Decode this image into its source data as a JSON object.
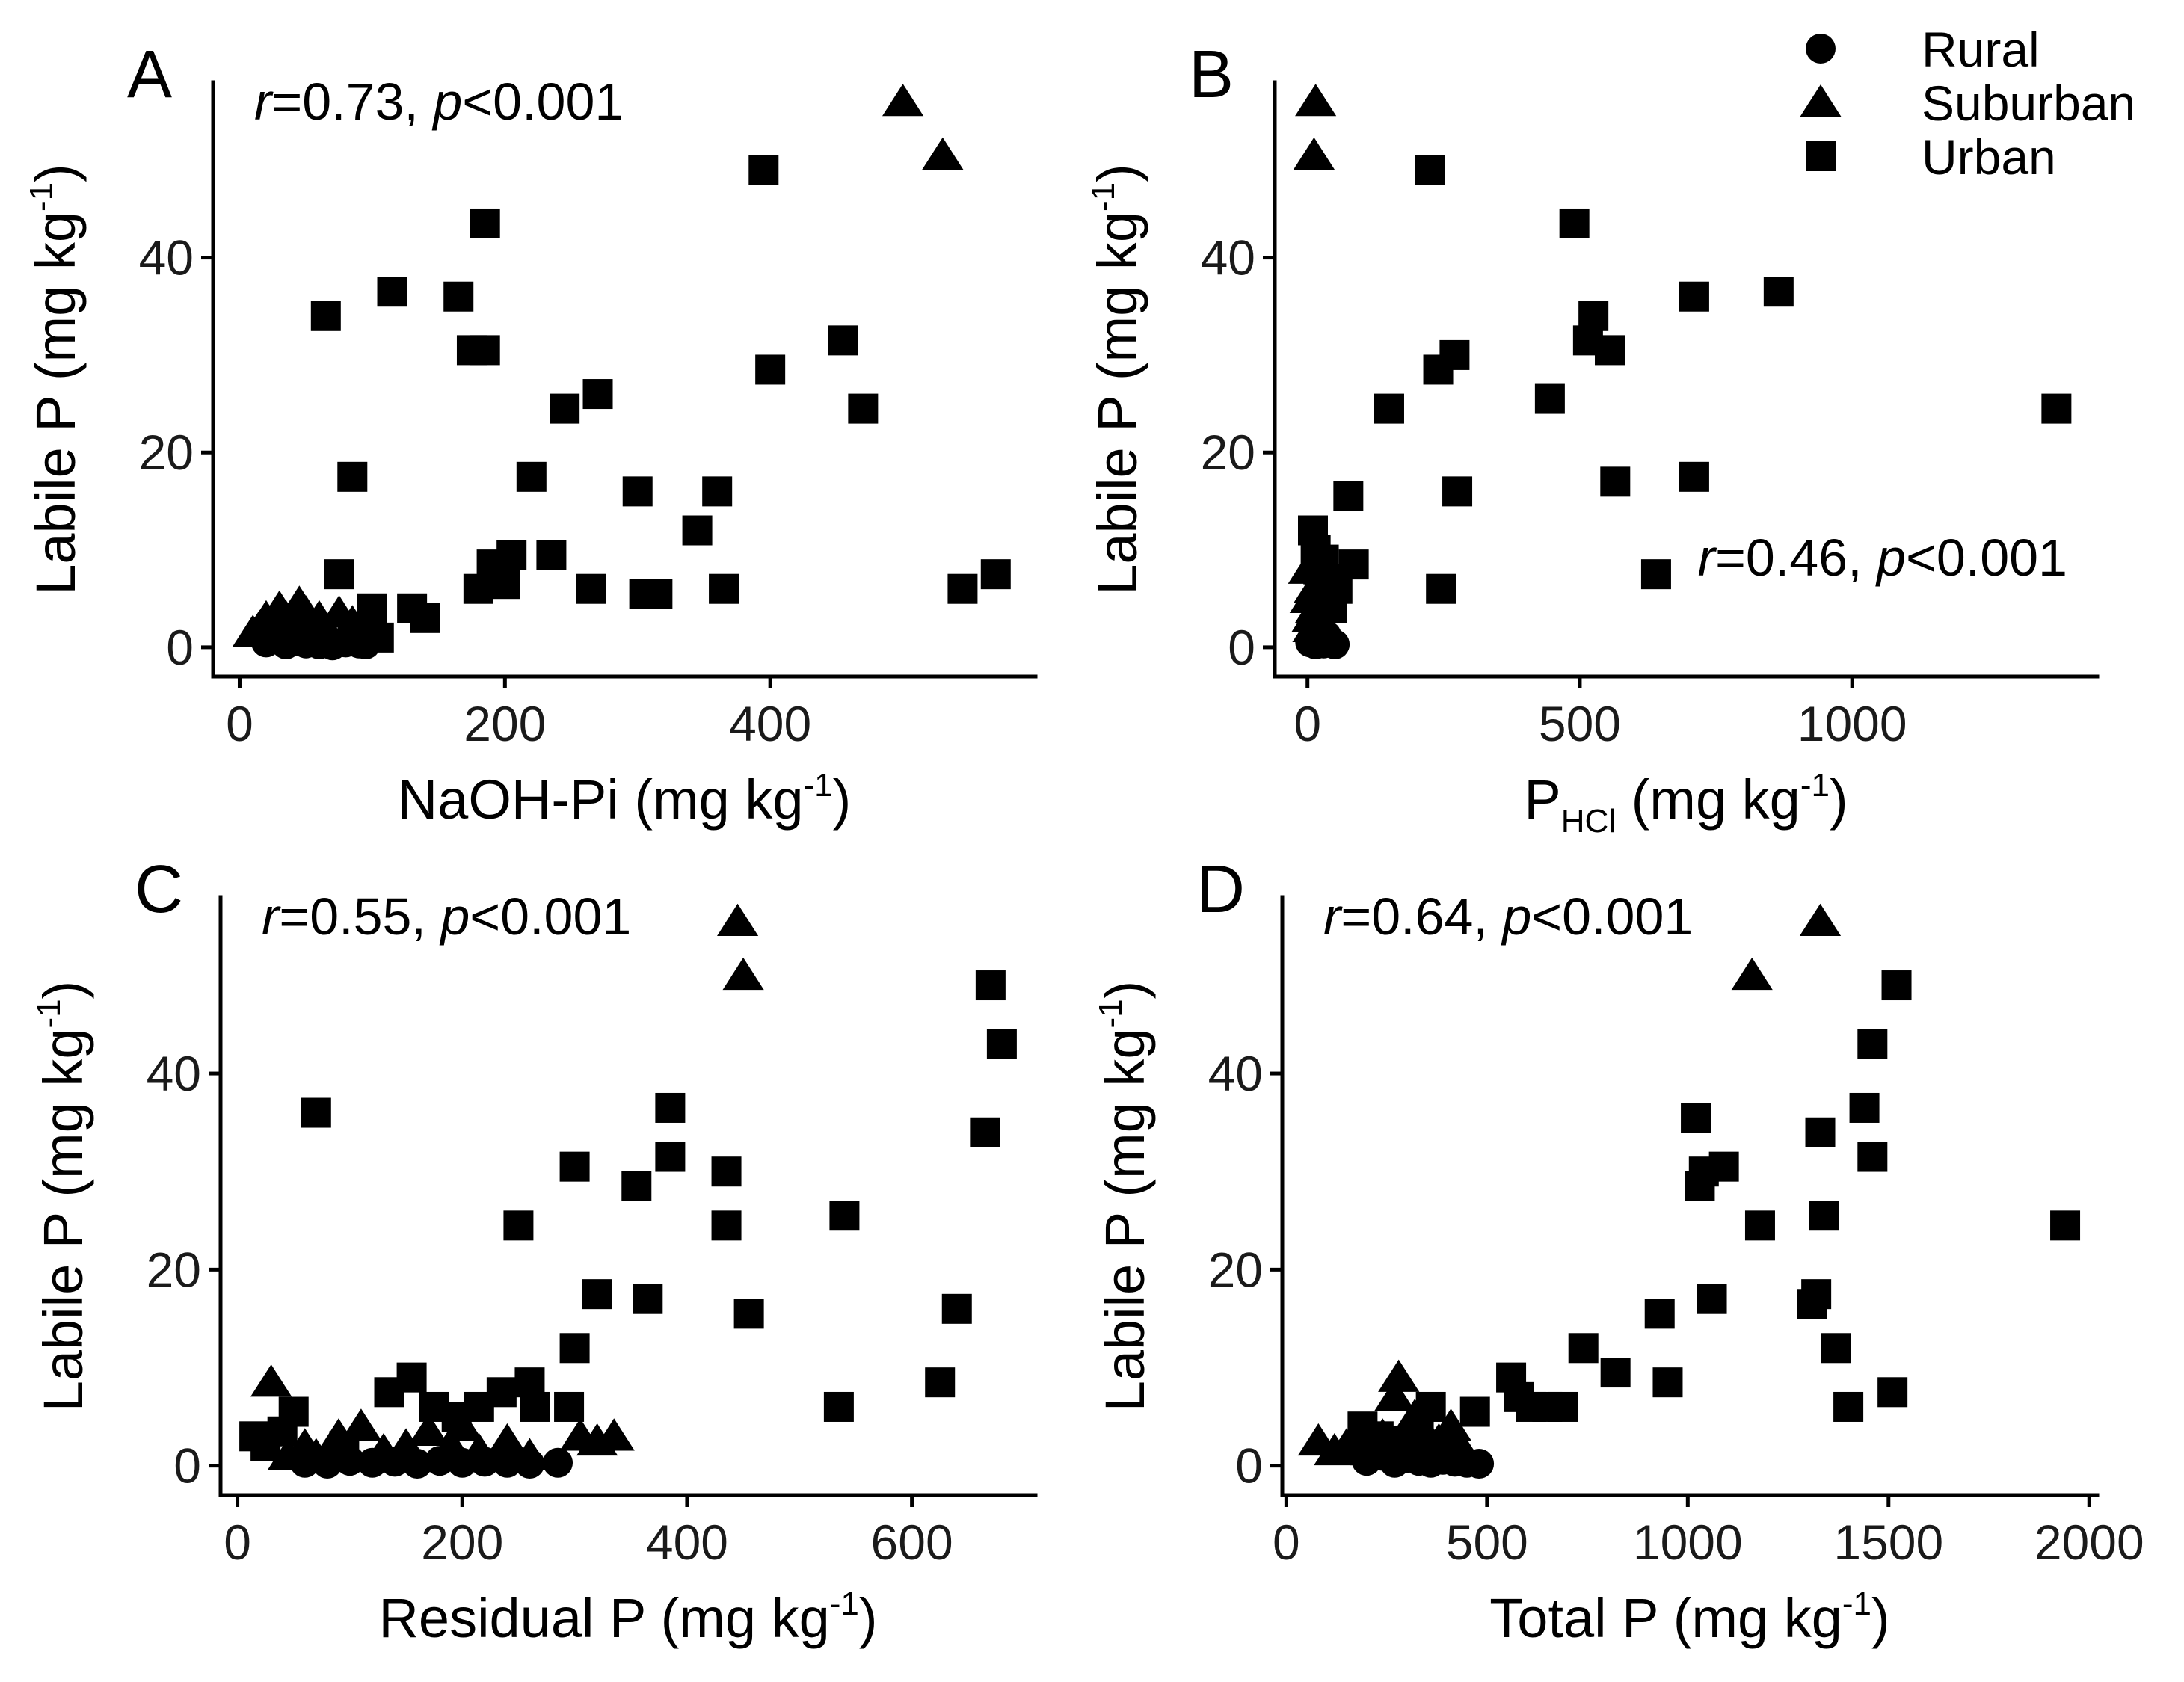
{
  "legend": {
    "position": "top-right",
    "entries": [
      {
        "label": "Rural",
        "shape": "circle"
      },
      {
        "label": "Suburban",
        "shape": "triangle"
      },
      {
        "label": "Urban",
        "shape": "square"
      }
    ]
  },
  "chart_data": [
    {
      "type": "scatter",
      "panel_label": "A",
      "annotation": {
        "r_label": "r",
        "r_value": "=0.73, ",
        "p_label": "p",
        "p_value": "<0.001",
        "position": "top-left"
      },
      "xlabel": {
        "main": "NaOH-Pi (mg kg",
        "sup": "-1",
        "end": ")"
      },
      "ylabel": {
        "main": "Labile P (mg kg",
        "sup": "-1",
        "end": ")"
      },
      "xlim": [
        -20,
        600
      ],
      "ylim": [
        -3,
        58
      ],
      "xticks": [
        0,
        200,
        400
      ],
      "yticks": [
        0,
        20,
        40
      ],
      "series": [
        {
          "name": "Rural",
          "marker": "circle",
          "points": [
            [
              20,
              0.5
            ],
            [
              28,
              0.8
            ],
            [
              35,
              0.3
            ],
            [
              40,
              1
            ],
            [
              45,
              0.6
            ],
            [
              50,
              0.4
            ],
            [
              55,
              0.9
            ],
            [
              60,
              0.3
            ],
            [
              65,
              0.6
            ],
            [
              70,
              0.2
            ],
            [
              80,
              0.5
            ],
            [
              90,
              0.4
            ],
            [
              95,
              0.3
            ]
          ]
        },
        {
          "name": "Suburban",
          "marker": "triangle",
          "points": [
            [
              10,
              1.5
            ],
            [
              15,
              2
            ],
            [
              20,
              3
            ],
            [
              25,
              2.5
            ],
            [
              30,
              4
            ],
            [
              35,
              3
            ],
            [
              40,
              2
            ],
            [
              45,
              4.5
            ],
            [
              50,
              3.5
            ],
            [
              55,
              2
            ],
            [
              60,
              3
            ],
            [
              75,
              3.5
            ],
            [
              85,
              2.5
            ],
            [
              95,
              2
            ],
            [
              500,
              56
            ],
            [
              530,
              50.5
            ]
          ]
        },
        {
          "name": "Urban",
          "marker": "square",
          "points": [
            [
              65,
              34
            ],
            [
              75,
              7.5
            ],
            [
              85,
              17.5
            ],
            [
              100,
              4
            ],
            [
              105,
              1
            ],
            [
              115,
              36.5
            ],
            [
              130,
              4
            ],
            [
              140,
              3
            ],
            [
              165,
              36
            ],
            [
              175,
              30.5
            ],
            [
              180,
              6
            ],
            [
              185,
              43.5
            ],
            [
              185,
              30.5
            ],
            [
              190,
              8.5
            ],
            [
              200,
              6.5
            ],
            [
              205,
              9.5
            ],
            [
              220,
              17.5
            ],
            [
              235,
              9.5
            ],
            [
              245,
              24.5
            ],
            [
              265,
              6
            ],
            [
              270,
              26
            ],
            [
              300,
              16
            ],
            [
              305,
              5.5
            ],
            [
              315,
              5.5
            ],
            [
              345,
              12
            ],
            [
              360,
              16
            ],
            [
              365,
              6
            ],
            [
              395,
              49
            ],
            [
              400,
              28.5
            ],
            [
              455,
              31.5
            ],
            [
              470,
              24.5
            ],
            [
              545,
              6
            ],
            [
              570,
              7.5
            ]
          ]
        }
      ]
    },
    {
      "type": "scatter",
      "panel_label": "B",
      "annotation": {
        "r_label": "r",
        "r_value": "=0.46, ",
        "p_label": "p",
        "p_value": "<0.001",
        "position": "bottom-right"
      },
      "xlabel": {
        "main": "P",
        "sub": "HCl",
        "end": " (mg kg",
        "sup": "-1",
        "end2": ")"
      },
      "ylabel": {
        "main": "Labile P (mg kg",
        "sup": "-1",
        "end": ")"
      },
      "xlim": [
        -60,
        1450
      ],
      "ylim": [
        -3,
        58
      ],
      "xticks": [
        0,
        500,
        1000
      ],
      "yticks": [
        0,
        20,
        40
      ],
      "series": [
        {
          "name": "Rural",
          "marker": "circle",
          "points": [
            [
              5,
              0.5
            ],
            [
              10,
              1
            ],
            [
              15,
              0.3
            ],
            [
              20,
              1.5
            ],
            [
              25,
              0.8
            ],
            [
              30,
              0.4
            ],
            [
              35,
              1.2
            ],
            [
              40,
              0.6
            ],
            [
              50,
              0.3
            ]
          ]
        },
        {
          "name": "Suburban",
          "marker": "triangle",
          "points": [
            [
              2,
              8
            ],
            [
              5,
              5
            ],
            [
              8,
              3
            ],
            [
              10,
              2
            ],
            [
              12,
              6
            ],
            [
              15,
              4
            ],
            [
              18,
              2
            ],
            [
              20,
              3
            ],
            [
              15,
              56
            ],
            [
              12,
              50.5
            ]
          ]
        },
        {
          "name": "Urban",
          "marker": "square",
          "points": [
            [
              10,
              12
            ],
            [
              15,
              10
            ],
            [
              20,
              8
            ],
            [
              25,
              5
            ],
            [
              30,
              9
            ],
            [
              35,
              7
            ],
            [
              40,
              6.5
            ],
            [
              45,
              4
            ],
            [
              55,
              6
            ],
            [
              75,
              15.5
            ],
            [
              85,
              8.5
            ],
            [
              150,
              24.5
            ],
            [
              225,
              49
            ],
            [
              240,
              28.5
            ],
            [
              245,
              6
            ],
            [
              270,
              30
            ],
            [
              275,
              16
            ],
            [
              445,
              25.5
            ],
            [
              490,
              43.5
            ],
            [
              515,
              31.5
            ],
            [
              525,
              34
            ],
            [
              555,
              30.5
            ],
            [
              565,
              17
            ],
            [
              640,
              7.5
            ],
            [
              710,
              36
            ],
            [
              710,
              17.5
            ],
            [
              865,
              36.5
            ],
            [
              1375,
              24.5
            ]
          ]
        }
      ]
    },
    {
      "type": "scatter",
      "panel_label": "C",
      "annotation": {
        "r_label": "r",
        "r_value": "=0.55, ",
        "p_label": "p",
        "p_value": "<0.001",
        "position": "top-left"
      },
      "xlabel": {
        "main": "Residual P (mg kg",
        "sup": "-1",
        "end": ")"
      },
      "ylabel": {
        "main": "Labile P (mg kg",
        "sup": "-1",
        "end": ")"
      },
      "xlim": [
        -15,
        710
      ],
      "ylim": [
        -3,
        58
      ],
      "xticks": [
        0,
        200,
        400,
        600
      ],
      "yticks": [
        0,
        20,
        40
      ],
      "series": [
        {
          "name": "Rural",
          "marker": "circle",
          "points": [
            [
              60,
              0.3
            ],
            [
              80,
              0.2
            ],
            [
              100,
              0.5
            ],
            [
              120,
              0.3
            ],
            [
              140,
              0.4
            ],
            [
              160,
              0.2
            ],
            [
              180,
              0.5
            ],
            [
              200,
              0.3
            ],
            [
              220,
              0.4
            ],
            [
              240,
              0.3
            ],
            [
              260,
              0.2
            ],
            [
              285,
              0.3
            ]
          ]
        },
        {
          "name": "Suburban",
          "marker": "triangle",
          "points": [
            [
              30,
              8.5
            ],
            [
              45,
              1
            ],
            [
              60,
              2
            ],
            [
              70,
              1
            ],
            [
              90,
              3
            ],
            [
              110,
              4
            ],
            [
              130,
              1.5
            ],
            [
              150,
              2
            ],
            [
              170,
              3.5
            ],
            [
              190,
              2
            ],
            [
              200,
              4
            ],
            [
              215,
              1.5
            ],
            [
              240,
              2.5
            ],
            [
              260,
              1
            ],
            [
              305,
              3
            ],
            [
              320,
              2.5
            ],
            [
              335,
              3
            ],
            [
              445,
              55.5
            ],
            [
              450,
              50
            ]
          ]
        },
        {
          "name": "Urban",
          "marker": "square",
          "points": [
            [
              15,
              3
            ],
            [
              25,
              2
            ],
            [
              40,
              3.5
            ],
            [
              50,
              5.5
            ],
            [
              70,
              36
            ],
            [
              95,
              2
            ],
            [
              135,
              7.5
            ],
            [
              155,
              9
            ],
            [
              175,
              6
            ],
            [
              195,
              5
            ],
            [
              215,
              6
            ],
            [
              235,
              7.5
            ],
            [
              250,
              24.5
            ],
            [
              260,
              8.5
            ],
            [
              265,
              6
            ],
            [
              295,
              6
            ],
            [
              300,
              12
            ],
            [
              300,
              30.5
            ],
            [
              320,
              17.5
            ],
            [
              355,
              28.5
            ],
            [
              365,
              17
            ],
            [
              385,
              31.5
            ],
            [
              385,
              36.5
            ],
            [
              435,
              30
            ],
            [
              435,
              24.5
            ],
            [
              455,
              15.5
            ],
            [
              535,
              6
            ],
            [
              540,
              25.5
            ],
            [
              625,
              8.5
            ],
            [
              640,
              16
            ],
            [
              665,
              34
            ],
            [
              670,
              49
            ],
            [
              680,
              43
            ]
          ]
        }
      ]
    },
    {
      "type": "scatter",
      "panel_label": "D",
      "annotation": {
        "r_label": "r",
        "r_value": "=0.64, ",
        "p_label": "p",
        "p_value": "<0.001",
        "position": "top-left"
      },
      "xlabel": {
        "main": "Total P (mg kg",
        "sup": "-1",
        "end": ")"
      },
      "ylabel": {
        "main": "Labile P (mg kg",
        "sup": "-1",
        "end": ")"
      },
      "xlim": [
        -10,
        2020
      ],
      "ylim": [
        -3,
        58
      ],
      "xticks": [
        0,
        500,
        1000,
        1500,
        2000
      ],
      "yticks": [
        0,
        20,
        40
      ],
      "series": [
        {
          "name": "Rural",
          "marker": "circle",
          "points": [
            [
              200,
              0.5
            ],
            [
              240,
              1
            ],
            [
              270,
              0.3
            ],
            [
              300,
              0.8
            ],
            [
              330,
              0.5
            ],
            [
              360,
              0.3
            ],
            [
              390,
              0.6
            ],
            [
              420,
              0.4
            ],
            [
              450,
              0.3
            ],
            [
              480,
              0.2
            ]
          ]
        },
        {
          "name": "Suburban",
          "marker": "triangle",
          "points": [
            [
              80,
              2.5
            ],
            [
              120,
              1.5
            ],
            [
              150,
              2
            ],
            [
              180,
              3
            ],
            [
              210,
              1.5
            ],
            [
              240,
              3
            ],
            [
              270,
              7
            ],
            [
              280,
              9
            ],
            [
              300,
              2
            ],
            [
              320,
              5
            ],
            [
              350,
              3
            ],
            [
              380,
              2.5
            ],
            [
              410,
              4
            ],
            [
              440,
              1.5
            ],
            [
              1160,
              50
            ],
            [
              1330,
              55.5
            ]
          ]
        },
        {
          "name": "Urban",
          "marker": "square",
          "points": [
            [
              190,
              4
            ],
            [
              230,
              3
            ],
            [
              260,
              2.5
            ],
            [
              330,
              3.5
            ],
            [
              360,
              6
            ],
            [
              390,
              2
            ],
            [
              470,
              5.5
            ],
            [
              560,
              9
            ],
            [
              580,
              7
            ],
            [
              610,
              6
            ],
            [
              650,
              6
            ],
            [
              690,
              6
            ],
            [
              740,
              12
            ],
            [
              820,
              9.5
            ],
            [
              930,
              15.5
            ],
            [
              950,
              8.5
            ],
            [
              1020,
              35.5
            ],
            [
              1030,
              28.5
            ],
            [
              1040,
              30
            ],
            [
              1060,
              17
            ],
            [
              1090,
              30.5
            ],
            [
              1180,
              24.5
            ],
            [
              1310,
              16.5
            ],
            [
              1320,
              17.5
            ],
            [
              1330,
              34
            ],
            [
              1340,
              25.5
            ],
            [
              1370,
              12
            ],
            [
              1400,
              6
            ],
            [
              1440,
              36.5
            ],
            [
              1460,
              31.5
            ],
            [
              1460,
              43
            ],
            [
              1510,
              7.5
            ],
            [
              1520,
              49
            ],
            [
              1940,
              24.5
            ]
          ]
        }
      ]
    }
  ]
}
